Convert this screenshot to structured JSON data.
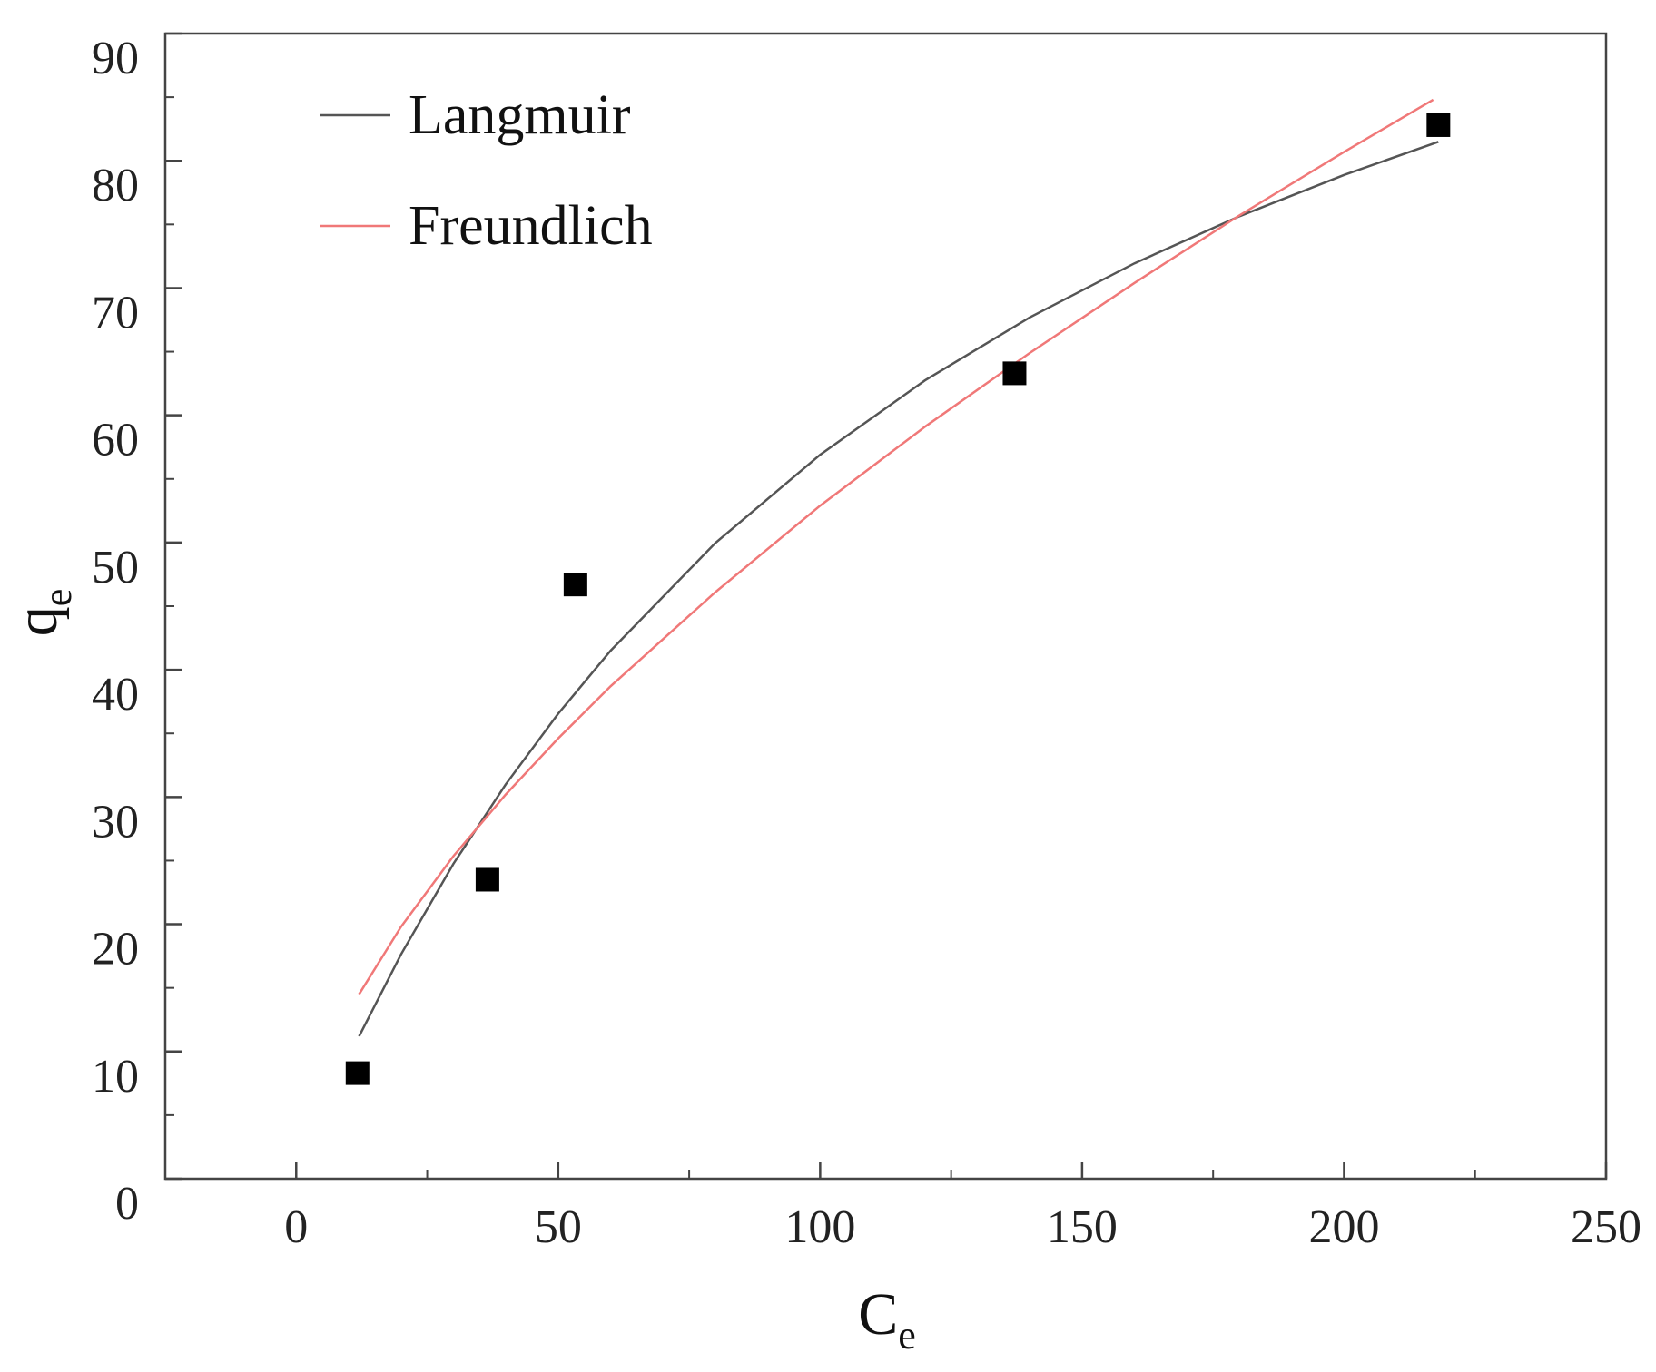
{
  "chart_data": {
    "type": "scatter",
    "xlabel": {
      "base": "C",
      "sub": "e"
    },
    "ylabel": {
      "base": "q",
      "sub": "e"
    },
    "xlim": [
      -25,
      250
    ],
    "ylim": [
      0,
      90
    ],
    "xticks": [
      0,
      50,
      100,
      150,
      200,
      250
    ],
    "yticks": [
      0,
      10,
      20,
      30,
      40,
      50,
      60,
      70,
      80,
      90
    ],
    "xminorticks": [
      25,
      75,
      125,
      175,
      225
    ],
    "yminorticks": [
      5,
      15,
      25,
      35,
      45,
      55,
      65,
      75,
      85
    ],
    "legend": "upper left",
    "points": {
      "color": "#000000",
      "x": [
        11.7,
        36.5,
        53.3,
        137.1,
        218
      ],
      "values": [
        8.3,
        23.5,
        46.7,
        63.3,
        82.8
      ]
    },
    "series": [
      {
        "name": "Langmuir",
        "color": "#555555",
        "x": [
          12,
          20,
          30,
          40,
          50,
          60,
          80,
          100,
          120,
          140,
          160,
          180,
          200,
          218
        ],
        "values": [
          11.19,
          17.63,
          24.75,
          31.0,
          36.55,
          41.5,
          49.96,
          56.9,
          62.74,
          67.69,
          71.94,
          75.64,
          78.89,
          81.49
        ]
      },
      {
        "name": "Freundlich",
        "color": "#f07878",
        "x": [
          12,
          20,
          30,
          40,
          50,
          60,
          80,
          100,
          120,
          140,
          160,
          180,
          200,
          217
        ],
        "values": [
          14.5,
          19.8,
          25.35,
          30.2,
          34.6,
          38.7,
          46.1,
          52.9,
          59.1,
          64.9,
          70.4,
          75.7,
          80.7,
          84.8
        ]
      }
    ]
  }
}
